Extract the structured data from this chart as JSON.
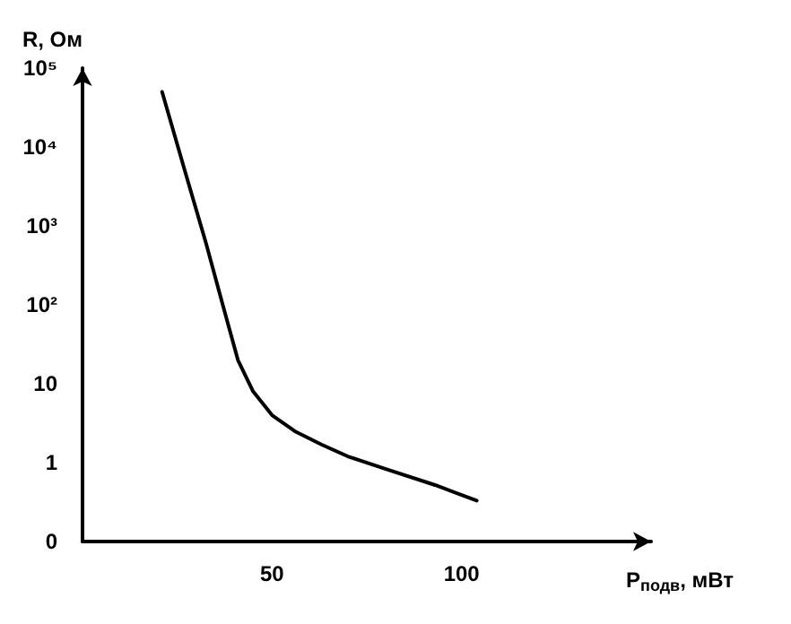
{
  "chart_data": {
    "type": "line",
    "xlabel": "P$_{подв}$, мВт",
    "ylabel": "R, Ом",
    "series": [
      {
        "color": "#000000",
        "x": [
          21,
          27,
          32.6,
          37,
          41,
          45,
          50,
          56,
          63,
          70,
          80,
          93,
          104
        ],
        "values": [
          50000,
          5000,
          600,
          100,
          20,
          8,
          4,
          2.5,
          1.7,
          1.2,
          0.83,
          0.52,
          0.33
        ]
      }
    ],
    "xlim": [
      0,
      150
    ],
    "xticks": [
      50,
      100
    ],
    "ylim": [
      0.1,
      100000
    ],
    "yticks": [
      {
        "value": 0.1,
        "label": "0"
      },
      1,
      10,
      {
        "value": 100,
        "label": "10²"
      },
      {
        "value": 1000,
        "label": "10³"
      },
      {
        "value": 10000,
        "label": "10⁴"
      },
      {
        "value": 100000,
        "label": "10⁵"
      }
    ],
    "log": "y",
    "grid": false,
    "marker": "none",
    "line_style": "solid"
  }
}
